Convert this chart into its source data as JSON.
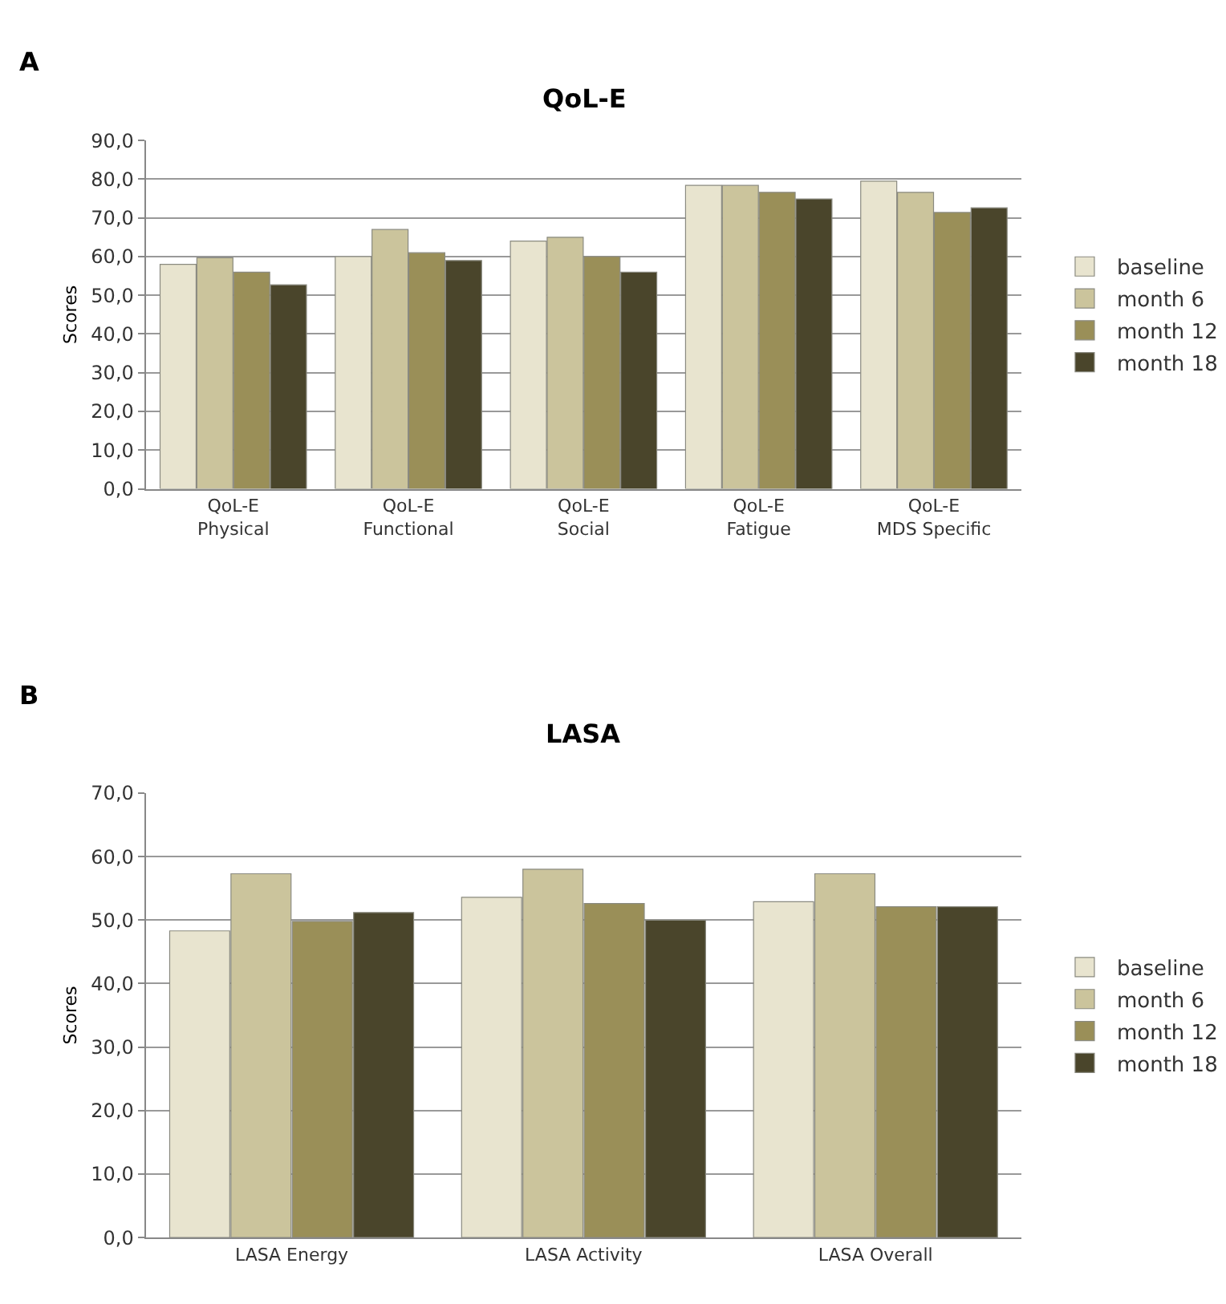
{
  "chart_data": [
    {
      "type": "bar",
      "title": "QoL-E",
      "ylabel": "Scores",
      "annotations": [
        "A"
      ],
      "categories": [
        "QoL-E\nPhysical",
        "QoL-E\nFunctional",
        "QoL-E\nSocial",
        "QoL-E\nFatigue",
        "QoL-E\nMDS Specific"
      ],
      "series": [
        {
          "name": "baseline",
          "color": "#e8e4cf",
          "values": [
            58,
            60,
            64,
            78.4,
            79.5
          ]
        },
        {
          "name": "month 6",
          "color": "#cbc49c",
          "values": [
            59.7,
            67,
            65,
            78.4,
            76.6
          ]
        },
        {
          "name": "month 12",
          "color": "#9a8f58",
          "values": [
            56,
            61,
            60,
            76.6,
            71.4
          ]
        },
        {
          "name": "month 18",
          "color": "#4a452b",
          "values": [
            52.7,
            59,
            56,
            74.9,
            72.6
          ]
        }
      ],
      "ylim": [
        0,
        90
      ],
      "yticks": [
        {
          "value": 0,
          "label": "0,0"
        },
        {
          "value": 10,
          "label": "10,0"
        },
        {
          "value": 20,
          "label": "20,0"
        },
        {
          "value": 30,
          "label": "30,0"
        },
        {
          "value": 40,
          "label": "40,0"
        },
        {
          "value": 50,
          "label": "50,0"
        },
        {
          "value": 60,
          "label": "60,0"
        },
        {
          "value": 70,
          "label": "70,0"
        },
        {
          "value": 80,
          "label": "80,0"
        },
        {
          "value": 90,
          "label": "90,0"
        }
      ],
      "grid": "y",
      "legend": "right"
    },
    {
      "type": "bar",
      "title": "LASA",
      "ylabel": "Scores",
      "annotations": [
        "B"
      ],
      "categories": [
        "LASA Energy",
        "LASA Activity",
        "LASA Overall"
      ],
      "series": [
        {
          "name": "baseline",
          "color": "#e8e4cf",
          "values": [
            48.3,
            53.6,
            52.9
          ]
        },
        {
          "name": "month 6",
          "color": "#cbc49c",
          "values": [
            57.3,
            58,
            57.3
          ]
        },
        {
          "name": "month 12",
          "color": "#9a8f58",
          "values": [
            49.8,
            52.6,
            52.1
          ]
        },
        {
          "name": "month 18",
          "color": "#4a452b",
          "values": [
            51.2,
            50,
            52.1
          ]
        }
      ],
      "ylim": [
        0,
        70
      ],
      "yticks": [
        {
          "value": 0,
          "label": "0,0"
        },
        {
          "value": 10,
          "label": "10,0"
        },
        {
          "value": 20,
          "label": "20,0"
        },
        {
          "value": 30,
          "label": "30,0"
        },
        {
          "value": 40,
          "label": "40,0"
        },
        {
          "value": 50,
          "label": "50,0"
        },
        {
          "value": 60,
          "label": "60,0"
        },
        {
          "value": 70,
          "label": "70,0"
        }
      ],
      "grid": "y",
      "legend": "right"
    }
  ]
}
